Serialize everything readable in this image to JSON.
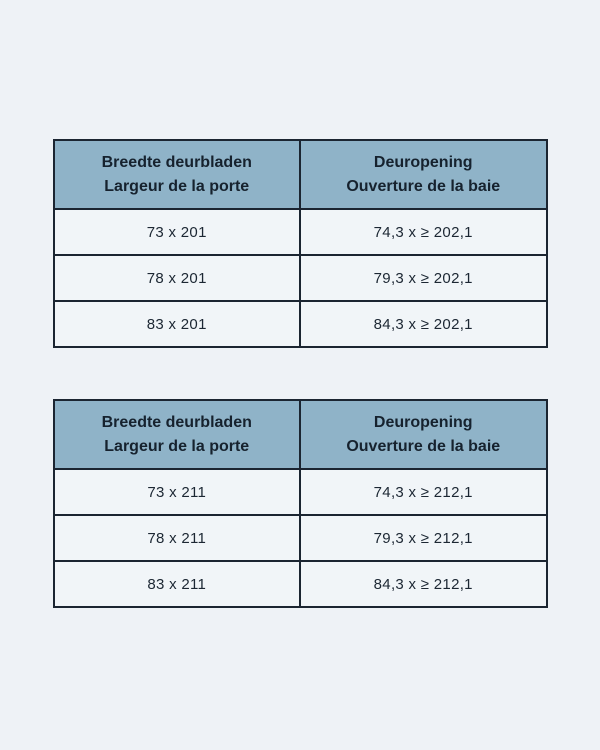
{
  "colors": {
    "page_background": "#eef2f6",
    "header_background": "#8fb3c8",
    "border": "#1b2531",
    "cell_background": "#f1f5f8",
    "text": "#1c2733"
  },
  "tables": [
    {
      "headers": [
        {
          "line1": "Breedte deurbladen",
          "line2": "Largeur de la porte"
        },
        {
          "line1": "Deuropening",
          "line2": "Ouverture de la baie"
        }
      ],
      "rows": [
        [
          "73 x 201",
          "74,3 x ≥ 202,1"
        ],
        [
          "78 x 201",
          "79,3 x ≥ 202,1"
        ],
        [
          "83 x 201",
          "84,3 x ≥ 202,1"
        ]
      ]
    },
    {
      "headers": [
        {
          "line1": "Breedte deurbladen",
          "line2": "Largeur de la porte"
        },
        {
          "line1": "Deuropening",
          "line2": "Ouverture de la baie"
        }
      ],
      "rows": [
        [
          "73 x 211",
          "74,3 x ≥ 212,1"
        ],
        [
          "78 x 211",
          "79,3 x ≥ 212,1"
        ],
        [
          "83 x 211",
          "84,3 x ≥ 212,1"
        ]
      ]
    }
  ]
}
